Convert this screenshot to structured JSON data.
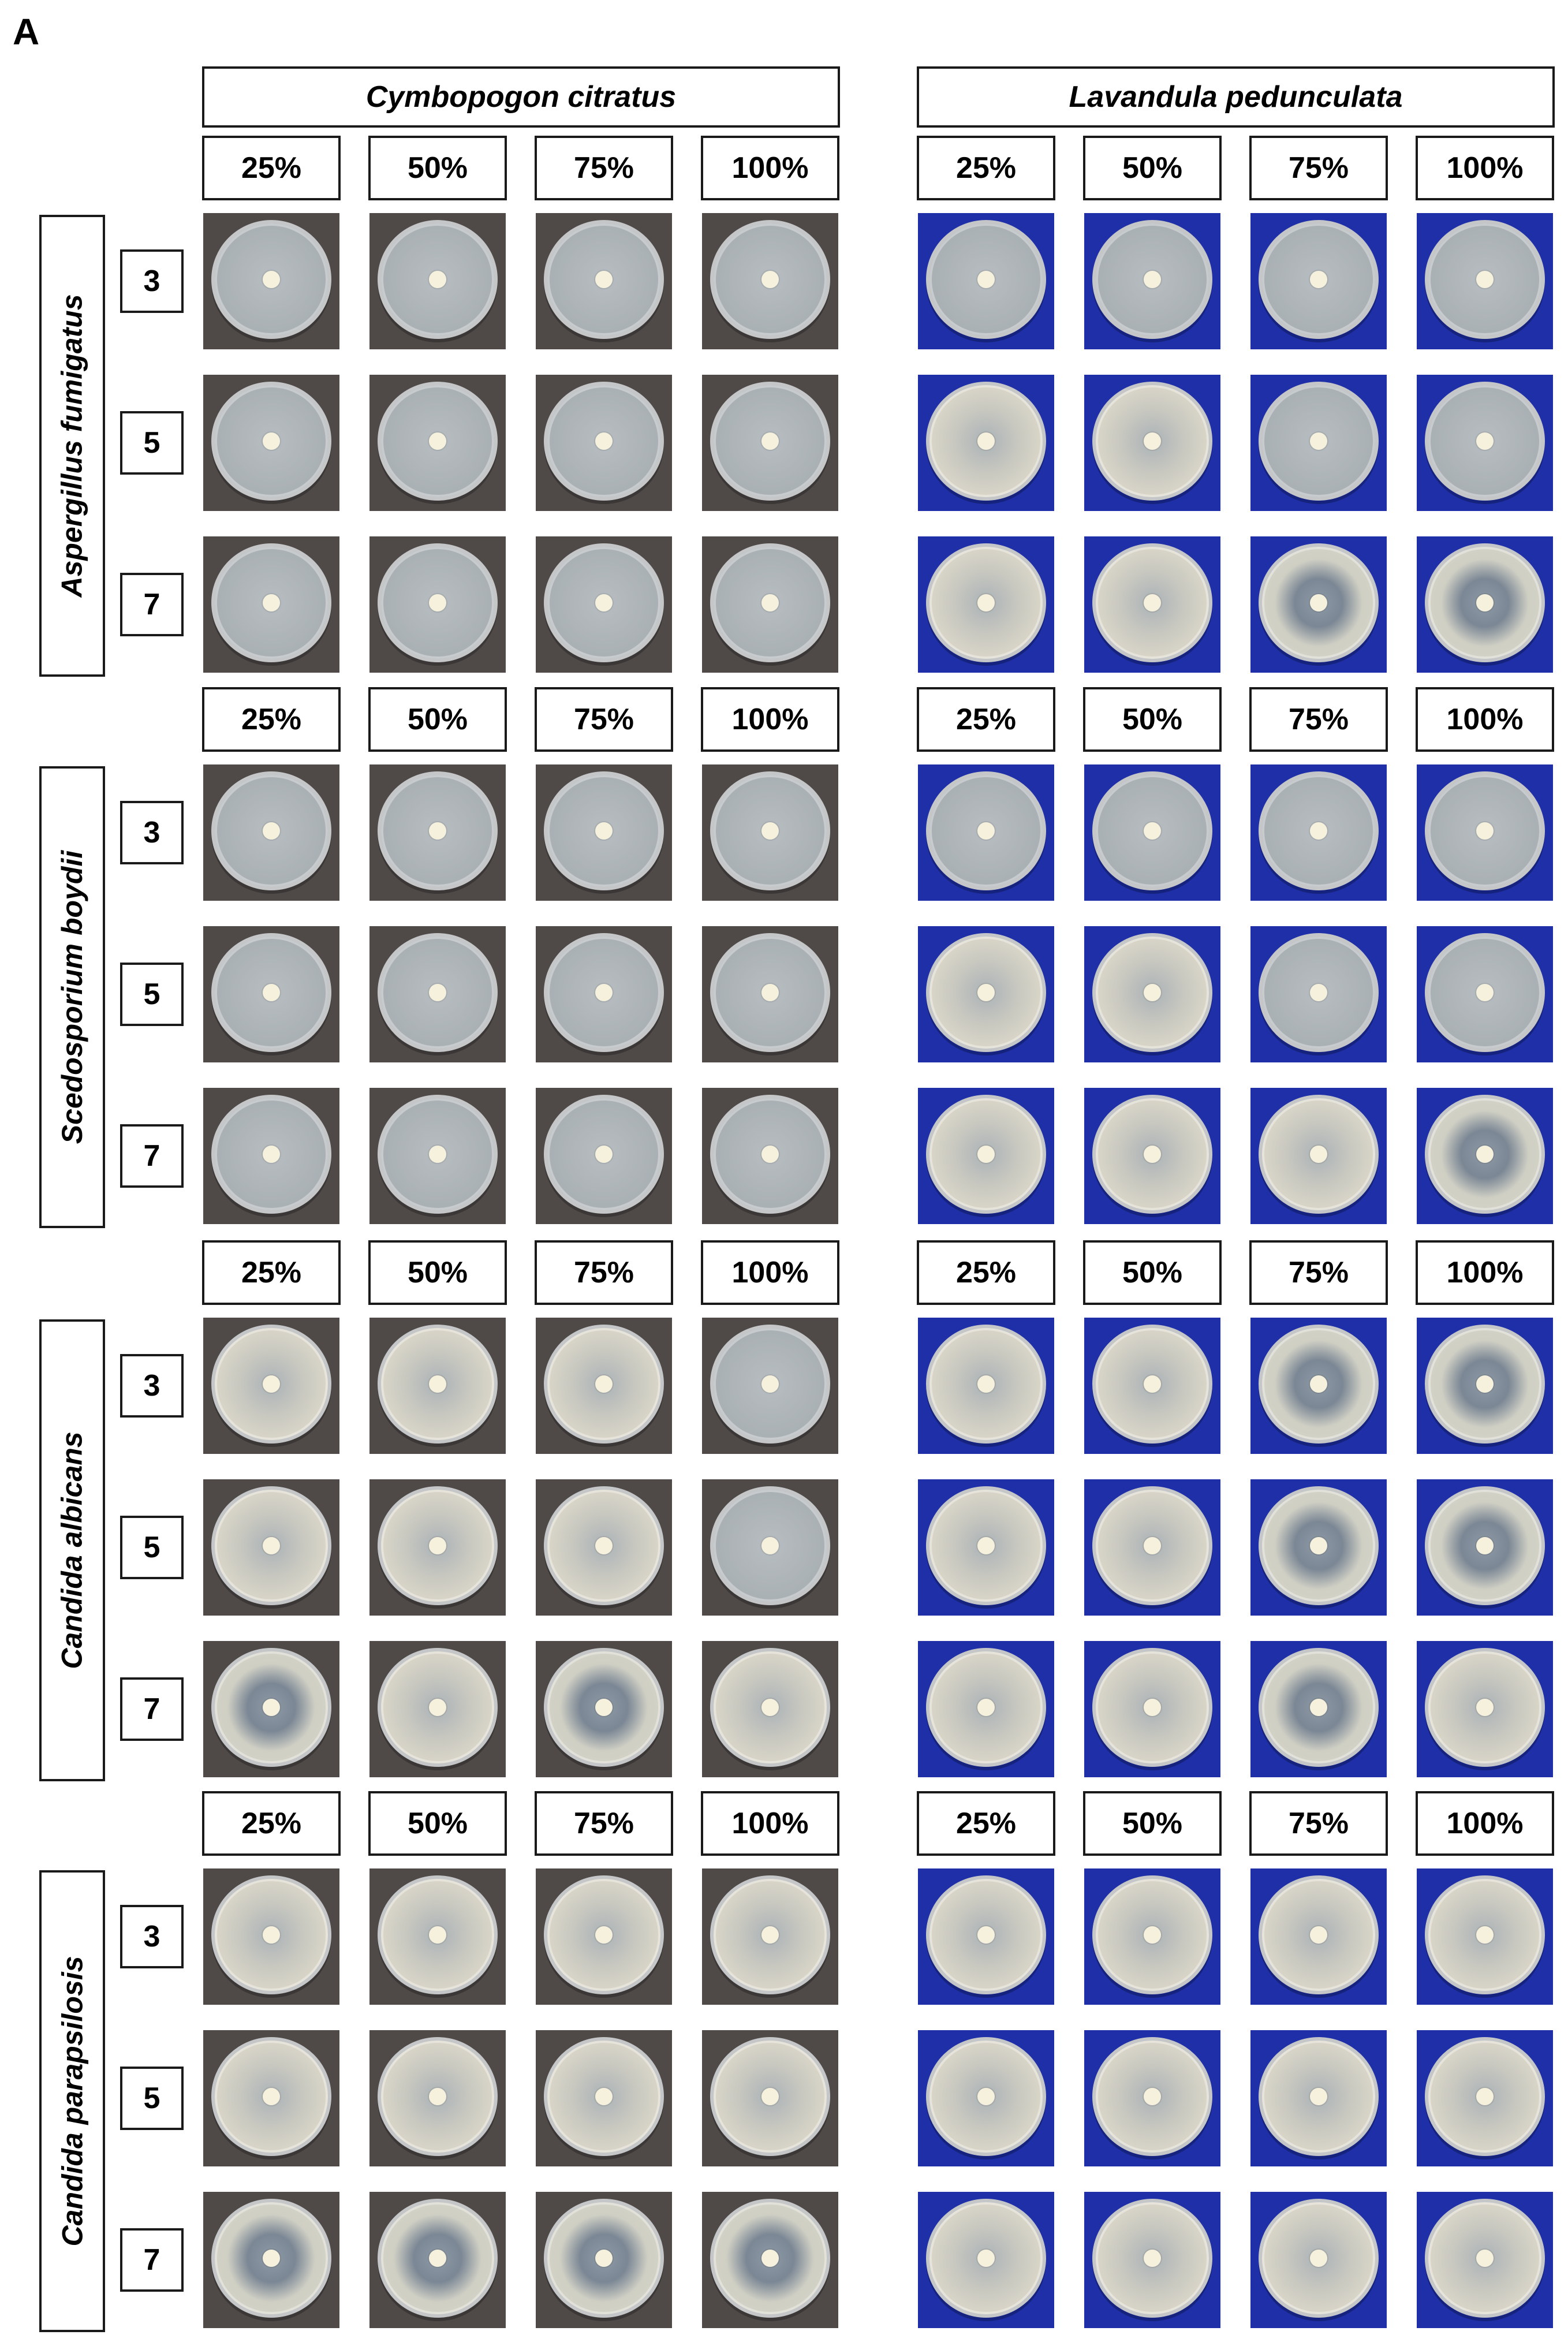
{
  "panel_label": "A",
  "oils": [
    {
      "name": "Cymbopogon citratus",
      "background": "dark"
    },
    {
      "name": "Lavandula pedunculata",
      "background": "blue"
    }
  ],
  "concentrations": [
    "25%",
    "50%",
    "75%",
    "100%"
  ],
  "days": [
    "3",
    "5",
    "7"
  ],
  "organisms": [
    "Aspergillus fumigatus",
    "Scedosporium boydii",
    "Candida albicans",
    "Candida parapsilosis"
  ],
  "colors": {
    "border": "#1a1a1a",
    "dark_background": "#4f4a48",
    "blue_background": "#1e2fa8"
  }
}
